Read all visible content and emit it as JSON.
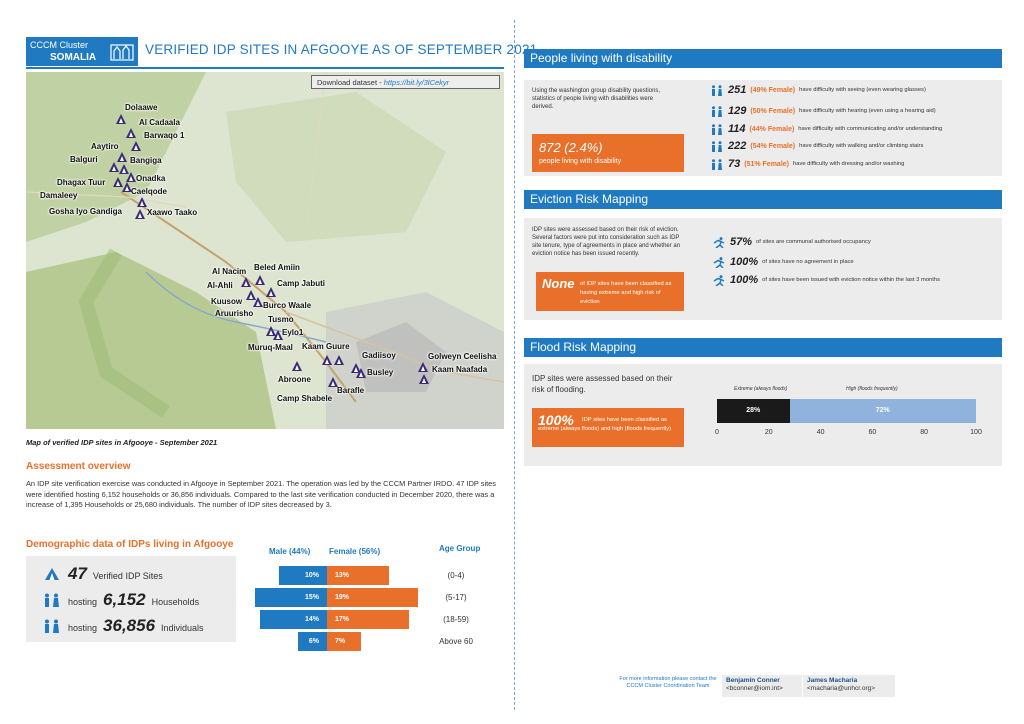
{
  "header": {
    "logo_line1": "CCCM Cluster",
    "logo_line2": "SOMALIA",
    "title": "VERIFIED IDP SITES IN AFGOOYE AS OF SEPTEMBER 2021"
  },
  "map": {
    "download_label": "Download dataset - ",
    "download_link": "https://bit.ly/3lCekyr",
    "caption": "Map of verified IDP sites in Afgooye - September 2021",
    "sites": [
      "Dolaawe",
      "Al Cadaala",
      "Barwaqo 1",
      "Aaytiro",
      "Bangiga",
      "Balguri",
      "Onadka",
      "Dhagax Tuur",
      "Caelqode",
      "Damaleey",
      "Gosha Iyo Gandiga",
      "Xaawo Taako",
      "Al Nacim",
      "Beled Amiin",
      "Camp Jabuti",
      "Al-Ahli",
      "Burco Waale",
      "Kuusow",
      "Aruurisho",
      "Tusmo",
      "Eylo1",
      "Muruq-Maal",
      "Kaam Guure",
      "Gadiisoy",
      "Golweyn Ceelisha",
      "Busley",
      "Kaam Naafada",
      "Abroone",
      "Barafle",
      "Camp Shabele"
    ]
  },
  "overview": {
    "heading": "Assessment overview",
    "text": "An IDP site verification exercise was conducted in Afgooye in September 2021. The operation was led by the CCCM Partner IRDO. 47 IDP sites were identified hosting 6,152 households or 36,856 individuals. Compared to the last site verification conducted in December 2020, there was a increase of 1,395 Households or 25,680 individuals. The number of IDP sites decreased by 3."
  },
  "demographic": {
    "heading": "Demographic data of IDPs living in Afgooye",
    "sites_value": "47",
    "sites_label": "Verified IDP Sites",
    "hh_prefix": "hosting",
    "hh_value": "6,152",
    "hh_label": "Households",
    "ind_prefix": "hosting",
    "ind_value": "36,856",
    "ind_label": "Individuals",
    "male_header": "Male (44%)",
    "female_header": "Female (56%)",
    "age_header": "Age Group",
    "groups": [
      {
        "age": "(0-4)",
        "male": "10%",
        "female": "13%",
        "male_value": 10,
        "female_value": 13
      },
      {
        "age": "(5-17)",
        "male": "15%",
        "female": "19%",
        "male_value": 15,
        "female_value": 19
      },
      {
        "age": "(18-59)",
        "male": "14%",
        "female": "17%",
        "male_value": 14,
        "female_value": 17
      },
      {
        "age": "Above 60",
        "male": "6%",
        "female": "7%",
        "male_value": 6,
        "female_value": 7
      }
    ]
  },
  "disability": {
    "title": "People living with disability",
    "intro": "Using the washington group disability questions, statistics of people living with disabilities were derived.",
    "total": "872 (2.4%)",
    "total_label": "people living with disability",
    "stats": [
      {
        "num": "251",
        "pct": "(49% Female)",
        "text": "have difficulty with seeing (even wearing glasses)"
      },
      {
        "num": "129",
        "pct": "(50% Female)",
        "text": "have difficulty with hearing (even using a hearing aid)"
      },
      {
        "num": "114",
        "pct": "(44% Female)",
        "text": "have difficulty with communicating and/or understanding"
      },
      {
        "num": "222",
        "pct": "(54% Female)",
        "text": "have difficulty with walking and/or climbing stairs"
      },
      {
        "num": "73",
        "pct": "(51% Female)",
        "text": "have difficulty with dressing and/or washing"
      }
    ]
  },
  "eviction": {
    "title": "Eviction Risk Mapping",
    "intro": "IDP sites were assessed based on their risk of eviction. Several factors were put into consideration such as IDP site tenure, type of agreements in place and whether an eviction notice has been issued recently.",
    "none_word": "None",
    "none_text": "of IDP sites have been classified as having extreme and high risk of eviction",
    "stats": [
      {
        "num": "57%",
        "text": "of sites are communal authorised occupancy"
      },
      {
        "num": "100%",
        "text": "of sites have no agreement in place"
      },
      {
        "num": "100%",
        "text": "of sites have been issued with eviction notice within the last 3 months"
      }
    ]
  },
  "flood": {
    "title": "Flood Risk Mapping",
    "intro": "IDP sites were assessed based on their risk of flooding.",
    "big": "100%",
    "big_text": "IDP sites have been classified as extreme (always floods) and high (floods frequently)",
    "legend_extreme": "Extreme (always floods)",
    "legend_high": "High (floods frequently)",
    "extreme_value": 28,
    "high_value": 72,
    "extreme_label": "28%",
    "high_label": "72%",
    "ticks": [
      "0",
      "20",
      "40",
      "60",
      "80",
      "100"
    ],
    "extreme_color": "#1a1a1a",
    "high_color": "#8fb3dd"
  },
  "contact": {
    "note": "For more information please contact the CCCM Cluster Coordination Team",
    "p1_name": "Benjamin Conner",
    "p1_email": "<bconner@iom.int>",
    "p2_name": "James Macharia",
    "p2_email": "<macharia@unhcr.org>"
  },
  "colors": {
    "accent_blue": "#1f7ac2",
    "accent_orange": "#e8702a",
    "panel_grey": "#ececec"
  }
}
